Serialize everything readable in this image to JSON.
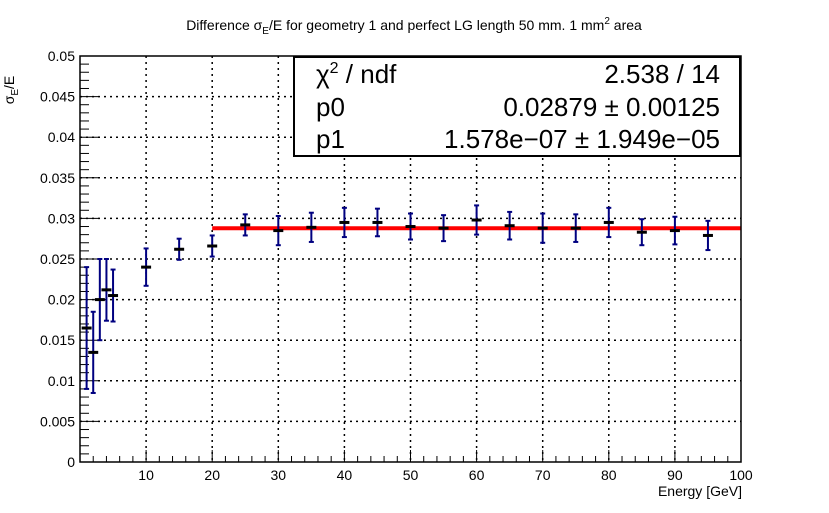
{
  "chart_data": {
    "type": "scatter",
    "title": {
      "prefix": "Difference σ",
      "sub": "E",
      "middle": "/E for geometry 1 and perfect LG length 50 mm. 1 mm",
      "sup": "2",
      "suffix": " area"
    },
    "xlabel": "Energy [GeV]",
    "ylabel": {
      "main": "σ",
      "sub": "E",
      "rest": "/E"
    },
    "xlim": [
      0,
      100
    ],
    "ylim": [
      0,
      0.05
    ],
    "x_ticks": [
      10,
      20,
      30,
      40,
      50,
      60,
      70,
      80,
      90,
      100
    ],
    "y_ticks": [
      0,
      0.005,
      0.01,
      0.015,
      0.02,
      0.025,
      0.03,
      0.035,
      0.04,
      0.045,
      0.05
    ],
    "y_tick_labels": [
      "0",
      "0.005",
      "0.01",
      "0.015",
      "0.02",
      "0.025",
      "0.03",
      "0.035",
      "0.04",
      "0.045",
      "0.05"
    ],
    "grid": true,
    "series": [
      {
        "name": "data",
        "color": "#000080",
        "x": [
          1,
          2,
          3,
          4,
          5,
          10,
          15,
          20,
          25,
          30,
          35,
          40,
          45,
          50,
          55,
          60,
          65,
          70,
          75,
          80,
          85,
          90,
          95
        ],
        "y": [
          0.0165,
          0.0135,
          0.02,
          0.0212,
          0.0205,
          0.024,
          0.0262,
          0.0266,
          0.0292,
          0.0285,
          0.0289,
          0.0295,
          0.0295,
          0.029,
          0.0288,
          0.0298,
          0.0291,
          0.0288,
          0.0288,
          0.0295,
          0.0283,
          0.0285,
          0.0279
        ],
        "yerr": [
          0.0075,
          0.005,
          0.005,
          0.0038,
          0.0032,
          0.0023,
          0.0013,
          0.0013,
          0.0013,
          0.0018,
          0.0018,
          0.0018,
          0.0017,
          0.0016,
          0.0016,
          0.0018,
          0.0017,
          0.0018,
          0.0017,
          0.0018,
          0.0016,
          0.0017,
          0.0018
        ]
      }
    ],
    "fit": {
      "color": "#ff0000",
      "x_range": [
        20,
        100
      ],
      "value": 0.02879
    },
    "stats_box": {
      "position": "top-right",
      "rows": [
        {
          "label": "χ",
          "label_sup": "2",
          "label_rest": " / ndf",
          "value": "2.538 / 14"
        },
        {
          "label": "p0",
          "label_sup": "",
          "label_rest": "",
          "value": "0.02879 ± 0.00125"
        },
        {
          "label": "p1",
          "label_sup": "",
          "label_rest": "",
          "value": "1.578e−07 ± 1.949e−05"
        }
      ]
    }
  }
}
